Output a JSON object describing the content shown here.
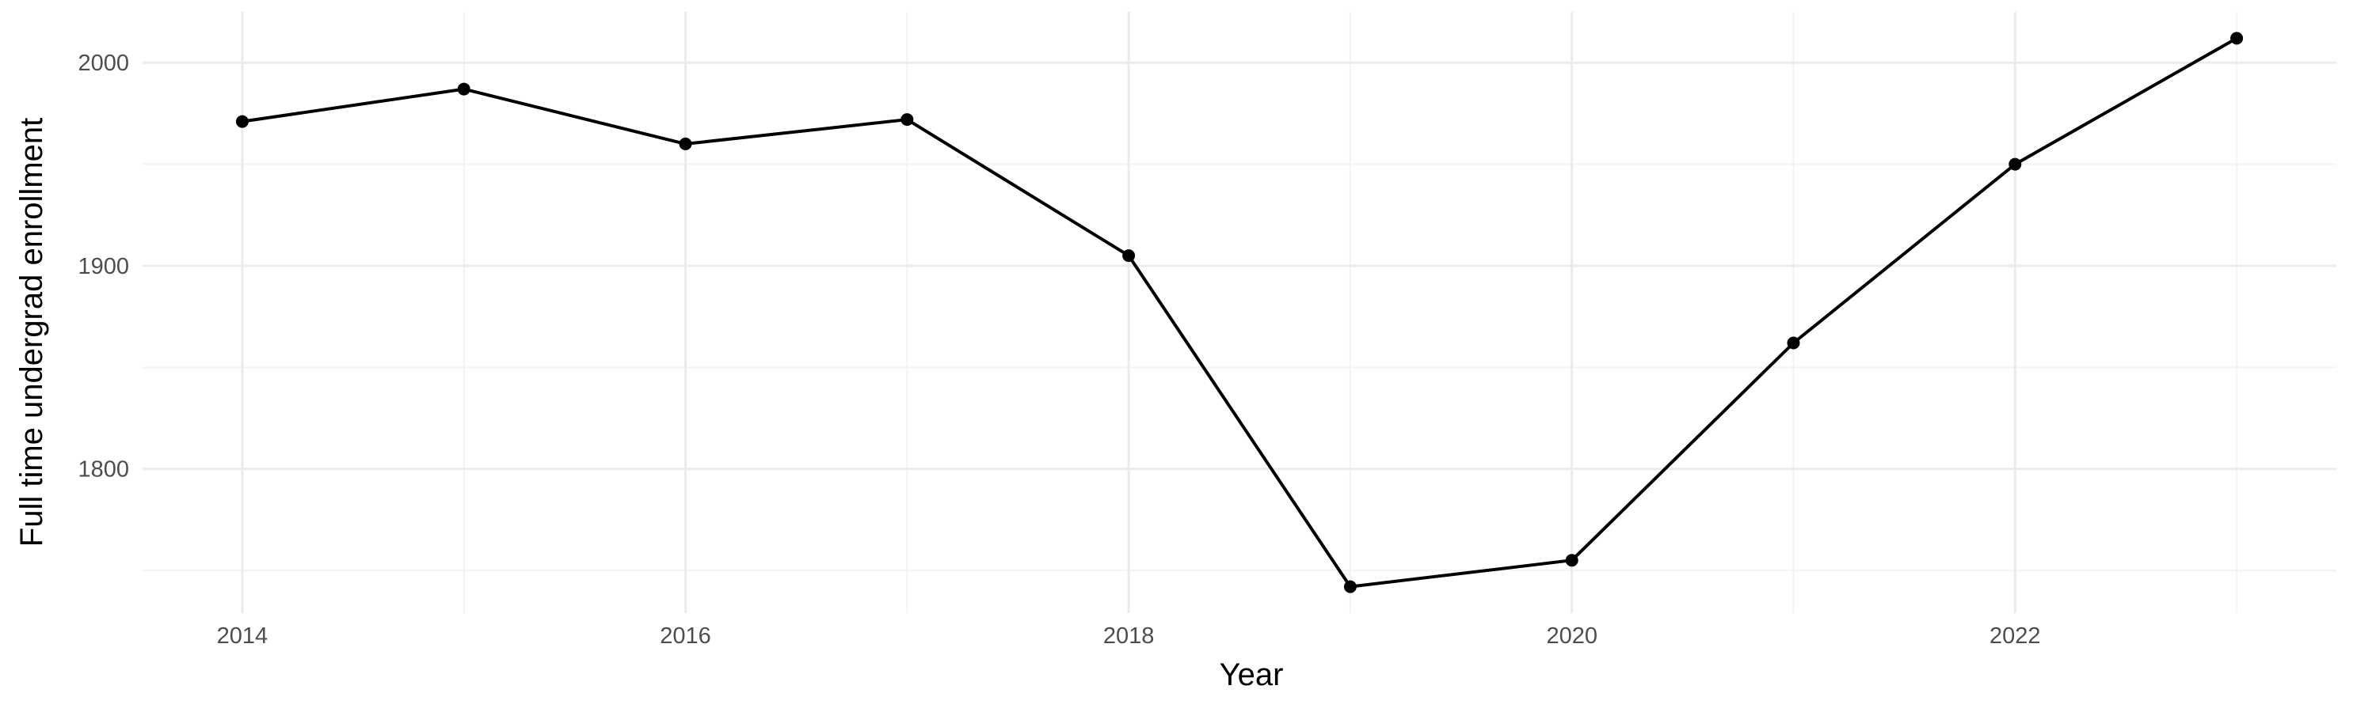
{
  "chart_data": {
    "type": "line",
    "title": "",
    "xlabel": "Year",
    "ylabel": "Full time undergrad enrollment",
    "x": [
      2014,
      2015,
      2016,
      2017,
      2018,
      2019,
      2020,
      2021,
      2022,
      2023
    ],
    "series": [
      {
        "values": [
          1971,
          1987,
          1960,
          1972,
          1905,
          1742,
          1755,
          1862,
          1950,
          2012
        ]
      }
    ],
    "xlim": [
      2013.55,
      2023.45
    ],
    "ylim": [
      1729,
      2025
    ],
    "x_ticks": [
      2014,
      2016,
      2018,
      2020,
      2022
    ],
    "x_tick_labels": [
      "2014",
      "2016",
      "2018",
      "2020",
      "2022"
    ],
    "y_ticks": [
      1800,
      1900,
      2000
    ],
    "y_tick_labels": [
      "1800",
      "1900",
      "2000"
    ],
    "x_minor_ticks": [
      2015,
      2017,
      2019,
      2021,
      2023
    ],
    "y_minor_ticks": [
      1750,
      1850,
      1950
    ],
    "grid": true,
    "line_color": "#000000",
    "point_color": "#000000",
    "grid_color": "#ebebeb",
    "tick_label_color": "#4d4d4d",
    "background": "#ffffff"
  }
}
